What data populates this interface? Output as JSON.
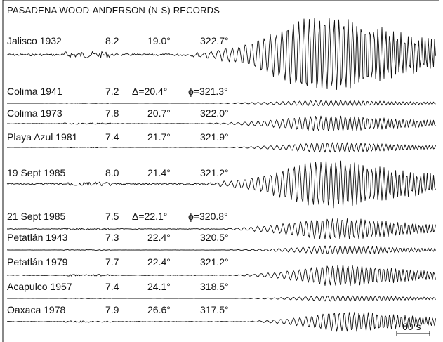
{
  "title": "PASADENA WOOD-ANDERSON (N-S) RECORDS",
  "scale_bar_label": "60 s",
  "records": [
    {
      "name": "Jalisco 1932",
      "magnitude": "8.2",
      "distance": "19.0°",
      "azimuth": "322.7°",
      "strength": 1.0,
      "onset": 0.42
    },
    {
      "name": "Colima 1941",
      "magnitude": "7.2",
      "distance": "Δ=20.4°",
      "azimuth": "ϕ=321.3°",
      "strength": 0.12,
      "onset": 0.45
    },
    {
      "name": "Colima 1973",
      "magnitude": "7.8",
      "distance": "20.7°",
      "azimuth": "322.0°",
      "strength": 0.3,
      "onset": 0.45
    },
    {
      "name": "Playa Azul 1981",
      "magnitude": "7.4",
      "distance": "21.7°",
      "azimuth": "321.9°",
      "strength": 0.18,
      "onset": 0.48
    },
    {
      "name": "19 Sept 1985",
      "magnitude": "8.0",
      "distance": "21.4°",
      "azimuth": "321.2°",
      "strength": 0.85,
      "onset": 0.45
    },
    {
      "name": "21 Sept 1985",
      "magnitude": "7.5",
      "distance": "Δ=22.1°",
      "azimuth": "ϕ=320.8°",
      "strength": 0.35,
      "onset": 0.48
    },
    {
      "name": "Petatlán 1943",
      "magnitude": "7.3",
      "distance": "22.4°",
      "azimuth": "320.5°",
      "strength": 0.15,
      "onset": 0.5
    },
    {
      "name": "Petatlán 1979",
      "magnitude": "7.7",
      "distance": "22.4°",
      "azimuth": "321.2°",
      "strength": 0.5,
      "onset": 0.52
    },
    {
      "name": "Acapulco 1957",
      "magnitude": "7.4",
      "distance": "24.1°",
      "azimuth": "318.5°",
      "strength": 0.12,
      "onset": 0.52
    },
    {
      "name": "Oaxaca 1978",
      "magnitude": "7.9",
      "distance": "26.6°",
      "azimuth": "317.5°",
      "strength": 0.45,
      "onset": 0.55
    }
  ]
}
